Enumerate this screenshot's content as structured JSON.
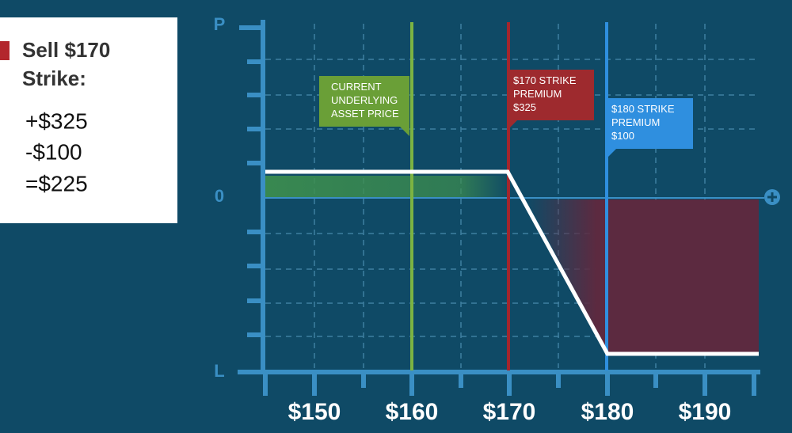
{
  "panel": {
    "title": [
      "Sell $170",
      "Strike:"
    ],
    "lines": [
      "+$325",
      "-$100",
      "=$225"
    ]
  },
  "axis": {
    "y_labels": [
      "P",
      "0",
      "L"
    ],
    "x_labels": [
      "$150",
      "$160",
      "$170",
      "$180",
      "$190"
    ]
  },
  "callouts": [
    {
      "lines": [
        "CURRENT",
        "UNDERLYING",
        "ASSET PRICE"
      ]
    },
    {
      "lines": [
        "$170 STRIKE",
        "PREMIUM",
        "$325"
      ]
    },
    {
      "lines": [
        "$180 STRIKE",
        "PREMIUM",
        "$100"
      ]
    }
  ]
}
